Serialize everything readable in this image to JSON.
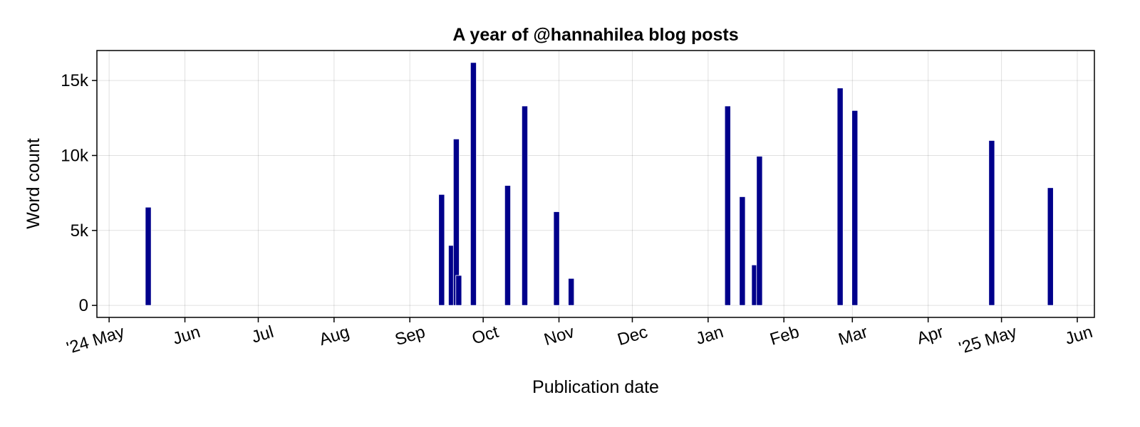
{
  "chart_data": {
    "type": "bar",
    "title": "A year of @hannahilea blog posts",
    "xlabel": "Publication date",
    "ylabel": "Word count",
    "bar_color": "#00008b",
    "grid": true,
    "ylim": [
      -800,
      17000
    ],
    "xlim": [
      "2024-04-26",
      "2025-06-08"
    ],
    "y_ticks": [
      {
        "value": 0,
        "label": "0"
      },
      {
        "value": 5000,
        "label": "5k"
      },
      {
        "value": 10000,
        "label": "10k"
      },
      {
        "value": 15000,
        "label": "15k"
      }
    ],
    "x_ticks": [
      {
        "date": "2024-05-01",
        "label": "'24 May"
      },
      {
        "date": "2024-06-01",
        "label": "Jun"
      },
      {
        "date": "2024-07-01",
        "label": "Jul"
      },
      {
        "date": "2024-08-01",
        "label": "Aug"
      },
      {
        "date": "2024-09-01",
        "label": "Sep"
      },
      {
        "date": "2024-10-01",
        "label": "Oct"
      },
      {
        "date": "2024-11-01",
        "label": "Nov"
      },
      {
        "date": "2024-12-01",
        "label": "Dec"
      },
      {
        "date": "2025-01-01",
        "label": "Jan"
      },
      {
        "date": "2025-02-01",
        "label": "Feb"
      },
      {
        "date": "2025-03-01",
        "label": "Mar"
      },
      {
        "date": "2025-04-01",
        "label": "Apr"
      },
      {
        "date": "2025-05-01",
        "label": "'25 May"
      },
      {
        "date": "2025-06-01",
        "label": "Jun"
      }
    ],
    "points": [
      {
        "date": "2024-05-17",
        "value": 6550
      },
      {
        "date": "2024-09-14",
        "value": 7400
      },
      {
        "date": "2024-09-18",
        "value": 4000
      },
      {
        "date": "2024-09-20",
        "value": 11100
      },
      {
        "date": "2024-09-21",
        "value": 2000
      },
      {
        "date": "2024-09-27",
        "value": 16200
      },
      {
        "date": "2024-10-11",
        "value": 8000
      },
      {
        "date": "2024-10-18",
        "value": 13300
      },
      {
        "date": "2024-10-31",
        "value": 6250
      },
      {
        "date": "2024-11-06",
        "value": 1800
      },
      {
        "date": "2025-01-09",
        "value": 13300
      },
      {
        "date": "2025-01-15",
        "value": 7250
      },
      {
        "date": "2025-01-20",
        "value": 2700
      },
      {
        "date": "2025-01-22",
        "value": 9950
      },
      {
        "date": "2025-02-24",
        "value": 14500
      },
      {
        "date": "2025-03-02",
        "value": 13000
      },
      {
        "date": "2025-04-27",
        "value": 11000
      },
      {
        "date": "2025-05-21",
        "value": 7850
      }
    ]
  }
}
